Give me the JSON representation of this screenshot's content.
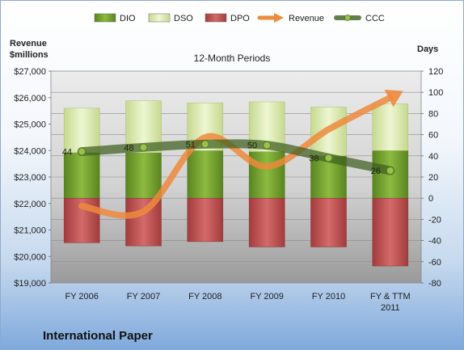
{
  "footer": {
    "company": "International Paper"
  },
  "chart_data": {
    "type": "bar",
    "title": "12-Month Periods",
    "left_axis": {
      "label_line1": "Revenue",
      "label_line2": "$millions",
      "range": [
        19000,
        27000
      ],
      "step": 1000,
      "ticks": [
        "$19,000",
        "$20,000",
        "$21,000",
        "$22,000",
        "$23,000",
        "$24,000",
        "$25,000",
        "$26,000",
        "$27,000"
      ]
    },
    "right_axis": {
      "label": "Days",
      "range": [
        -80,
        120
      ],
      "step": 20,
      "ticks": [
        "-80",
        "-60",
        "-40",
        "-20",
        "0",
        "20",
        "40",
        "60",
        "80",
        "100",
        "120"
      ]
    },
    "categories": [
      "FY 2006",
      "FY 2007",
      "FY 2008",
      "FY 2009",
      "FY 2010",
      "FY & TTM 2011"
    ],
    "grid": true,
    "legend_position": "top",
    "series": [
      {
        "name": "DIO",
        "kind": "stacked-bar-positive",
        "axis": "right",
        "values": [
          43,
          43,
          45,
          44,
          40,
          45
        ],
        "color": "#6e9b2a"
      },
      {
        "name": "DSO",
        "kind": "stacked-bar-positive",
        "axis": "right",
        "values": [
          42,
          49,
          45,
          47,
          46,
          44
        ],
        "color": "#d6e5a8"
      },
      {
        "name": "DPO",
        "kind": "bar-negative",
        "axis": "right",
        "values": [
          -42,
          -45,
          -41,
          -46,
          -46,
          -64
        ],
        "color": "#b94a4a"
      },
      {
        "name": "Revenue",
        "kind": "line",
        "axis": "left",
        "values": [
          21900,
          21700,
          24500,
          23400,
          24800,
          26000
        ],
        "color": "#ed8a3c"
      },
      {
        "name": "CCC",
        "kind": "line",
        "axis": "right",
        "values": [
          44,
          48,
          51,
          50,
          38,
          26
        ],
        "data_labels": [
          "44",
          "48",
          "51",
          "50",
          "38",
          "26"
        ],
        "color": "#4b6b26"
      }
    ]
  }
}
